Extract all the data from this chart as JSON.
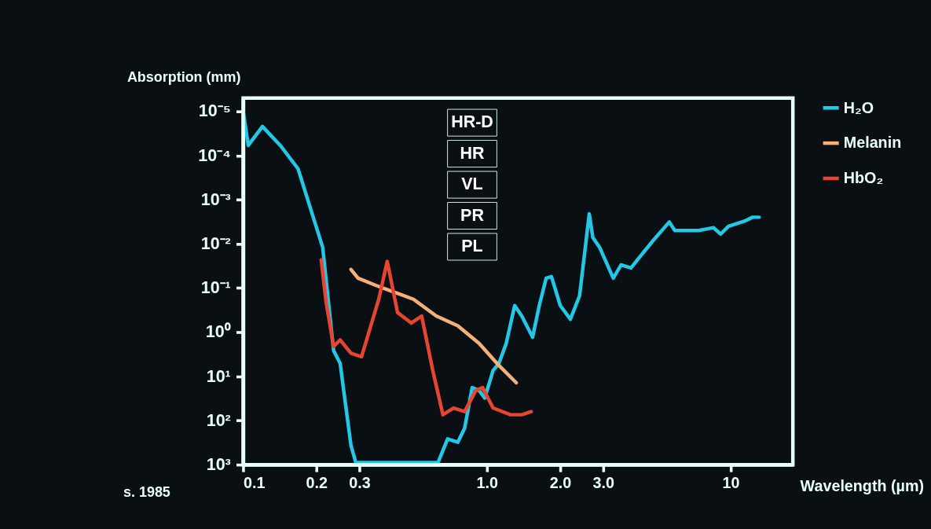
{
  "chart_data": {
    "type": "line",
    "xlabel": "Wavelength (µm)",
    "ylabel": "Absorption (mm)",
    "log": "xy",
    "xlim": [
      0.1,
      18
    ],
    "ylim": [
      1000,
      5e-06
    ],
    "xticks": [
      0.1,
      0.2,
      0.3,
      {
        "value": 1,
        "label": "1.0"
      },
      {
        "value": 2,
        "label": "2.0"
      },
      {
        "value": 3,
        "label": "3.0"
      },
      10
    ],
    "yticks": [
      {
        "value": 1e-05,
        "label": "10⁻⁵"
      },
      {
        "value": 0.0001,
        "label": "10⁻⁴"
      },
      {
        "value": 0.001,
        "label": "10⁻³"
      },
      {
        "value": 0.01,
        "label": "10⁻²"
      },
      {
        "value": 0.1,
        "label": "10⁻¹"
      },
      {
        "value": 1,
        "label": "10⁰"
      },
      {
        "value": 10,
        "label": "10¹"
      },
      {
        "value": 100,
        "label": "10²"
      },
      {
        "value": 1000,
        "label": "10³"
      }
    ],
    "grid": false,
    "legend": "right",
    "series": [
      {
        "name": "H₂O",
        "color": "#22c8e6",
        "x": [
          0.1,
          0.105,
          0.12,
          0.142,
          0.168,
          0.192,
          0.212,
          0.235,
          0.25,
          0.277,
          0.29,
          0.63,
          0.69,
          0.76,
          0.81,
          0.87,
          0.93,
          0.98,
          1.06,
          1.12,
          1.2,
          1.3,
          1.39,
          1.54,
          1.64,
          1.75,
          1.84,
          2.0,
          2.2,
          2.4,
          2.63,
          2.72,
          2.9,
          3.3,
          3.55,
          3.9,
          4.2,
          4.8,
          5.6,
          5.9,
          7.4,
          8.5,
          9.1,
          9.8,
          11.5,
          12.3,
          13.1
        ],
        "values": [
          1e-05,
          5.9e-05,
          2.2e-05,
          5.9e-05,
          0.0002,
          0.0021,
          0.012,
          2.6,
          5.1,
          370,
          900,
          900,
          260,
          310,
          150,
          18,
          21,
          31,
          7.4,
          5.1,
          1.8,
          0.25,
          0.43,
          1.3,
          0.25,
          0.06,
          0.055,
          0.25,
          0.51,
          0.15,
          0.0021,
          0.0072,
          0.012,
          0.06,
          0.03,
          0.035,
          0.021,
          0.0085,
          0.0032,
          0.005,
          0.005,
          0.0043,
          0.006,
          0.004,
          0.003,
          0.0025,
          0.0025
        ]
      },
      {
        "name": "Melanin",
        "color": "#f5b07a",
        "x": [
          0.277,
          0.296,
          0.35,
          0.41,
          0.5,
          0.62,
          0.76,
          0.93,
          1.1,
          1.32
        ],
        "values": [
          0.038,
          0.06,
          0.087,
          0.12,
          0.18,
          0.43,
          0.72,
          1.8,
          5.1,
          14
        ]
      },
      {
        "name": "HbO₂",
        "color": "#e84530",
        "x": [
          0.209,
          0.219,
          0.235,
          0.25,
          0.277,
          0.306,
          0.36,
          0.39,
          0.43,
          0.49,
          0.54,
          0.6,
          0.66,
          0.73,
          0.81,
          0.9,
          0.96,
          1.06,
          1.25,
          1.39,
          1.52
        ],
        "values": [
          0.023,
          0.21,
          2.1,
          1.5,
          3.0,
          3.6,
          0.18,
          0.025,
          0.36,
          0.62,
          0.43,
          7.4,
          74,
          52,
          63,
          21,
          18,
          52,
          74,
          74,
          63
        ]
      }
    ],
    "annotations": [
      "HR-D",
      "HR",
      "VL",
      "PR",
      "PL",
      "s. 1985"
    ]
  }
}
